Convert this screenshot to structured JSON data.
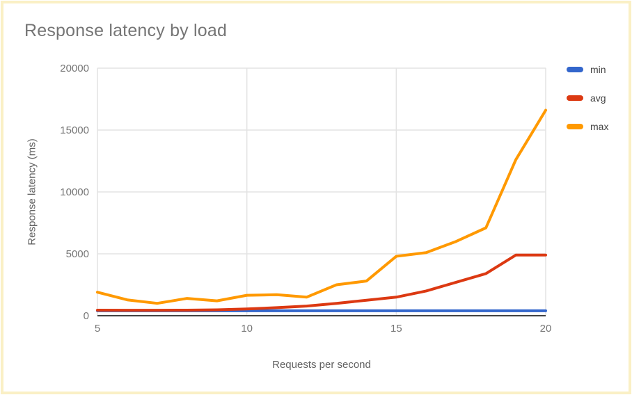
{
  "header": {
    "title": "Response latency by load"
  },
  "chart_data": {
    "type": "line",
    "title": "Response latency by load",
    "xlabel": "Requests per second",
    "ylabel": "Response latency (ms)",
    "x": [
      5,
      6,
      7,
      8,
      9,
      10,
      11,
      12,
      13,
      14,
      15,
      16,
      17,
      18,
      19,
      20
    ],
    "series": [
      {
        "name": "min",
        "color": "#3366CC",
        "values": [
          400,
          400,
          400,
          400,
          400,
          400,
          400,
          400,
          400,
          400,
          400,
          400,
          400,
          400,
          400,
          400
        ]
      },
      {
        "name": "avg",
        "color": "#DC3912",
        "values": [
          450,
          440,
          440,
          450,
          480,
          550,
          650,
          780,
          1000,
          1250,
          1500,
          2000,
          2700,
          3400,
          4900,
          4900
        ]
      },
      {
        "name": "max",
        "color": "#FF9900",
        "values": [
          1900,
          1280,
          1000,
          1400,
          1200,
          1650,
          1700,
          1500,
          2500,
          2800,
          4800,
          5100,
          6000,
          7100,
          12600,
          16600
        ]
      }
    ],
    "xticks": [
      5,
      10,
      15,
      20
    ],
    "yticks": [
      0,
      5000,
      10000,
      15000,
      20000
    ],
    "xlim": [
      5,
      20
    ],
    "ylim": [
      0,
      20000
    ],
    "grid": true,
    "legend_position": "right"
  },
  "colors": {
    "page_border": "#FAF0C5",
    "background": "#FFFFFF",
    "grid": "#E3E3E3",
    "axis_line": "#424242",
    "title_text": "#757575",
    "tick_text": "#757575",
    "axis_title_text": "#616161",
    "legend_text": "#424242"
  }
}
